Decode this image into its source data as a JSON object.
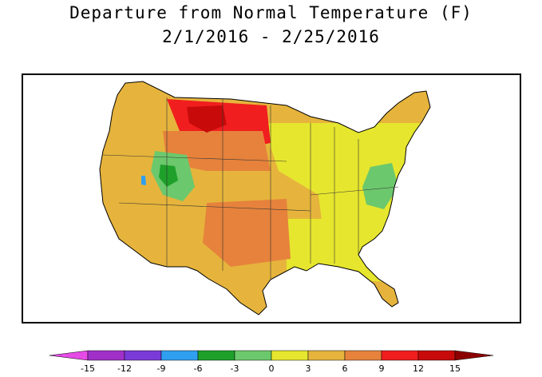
{
  "title": "Departure from Normal Temperature (F)",
  "subtitle": "2/1/2016 - 2/25/2016",
  "legend": {
    "ticks": [
      "-15",
      "-12",
      "-9",
      "-6",
      "-3",
      "0",
      "3",
      "6",
      "9",
      "12",
      "15"
    ],
    "colors": [
      "#e64be6",
      "#a030c8",
      "#7a3ad8",
      "#2f9ff0",
      "#1ea02a",
      "#6cc86c",
      "#e6e62e",
      "#e6b43c",
      "#e6823c",
      "#f01e1e",
      "#c80a0a",
      "#8c0000"
    ]
  },
  "palette": {
    "warm_light": "#e6e62e",
    "warm_mid": "#e6b43c",
    "warm_orange": "#e6823c",
    "hot_red": "#f01e1e",
    "hot_dark": "#c80a0a",
    "cool_green": "#6cc86c",
    "cool_dark_green": "#1ea02a",
    "cold_blue": "#2f9ff0"
  }
}
